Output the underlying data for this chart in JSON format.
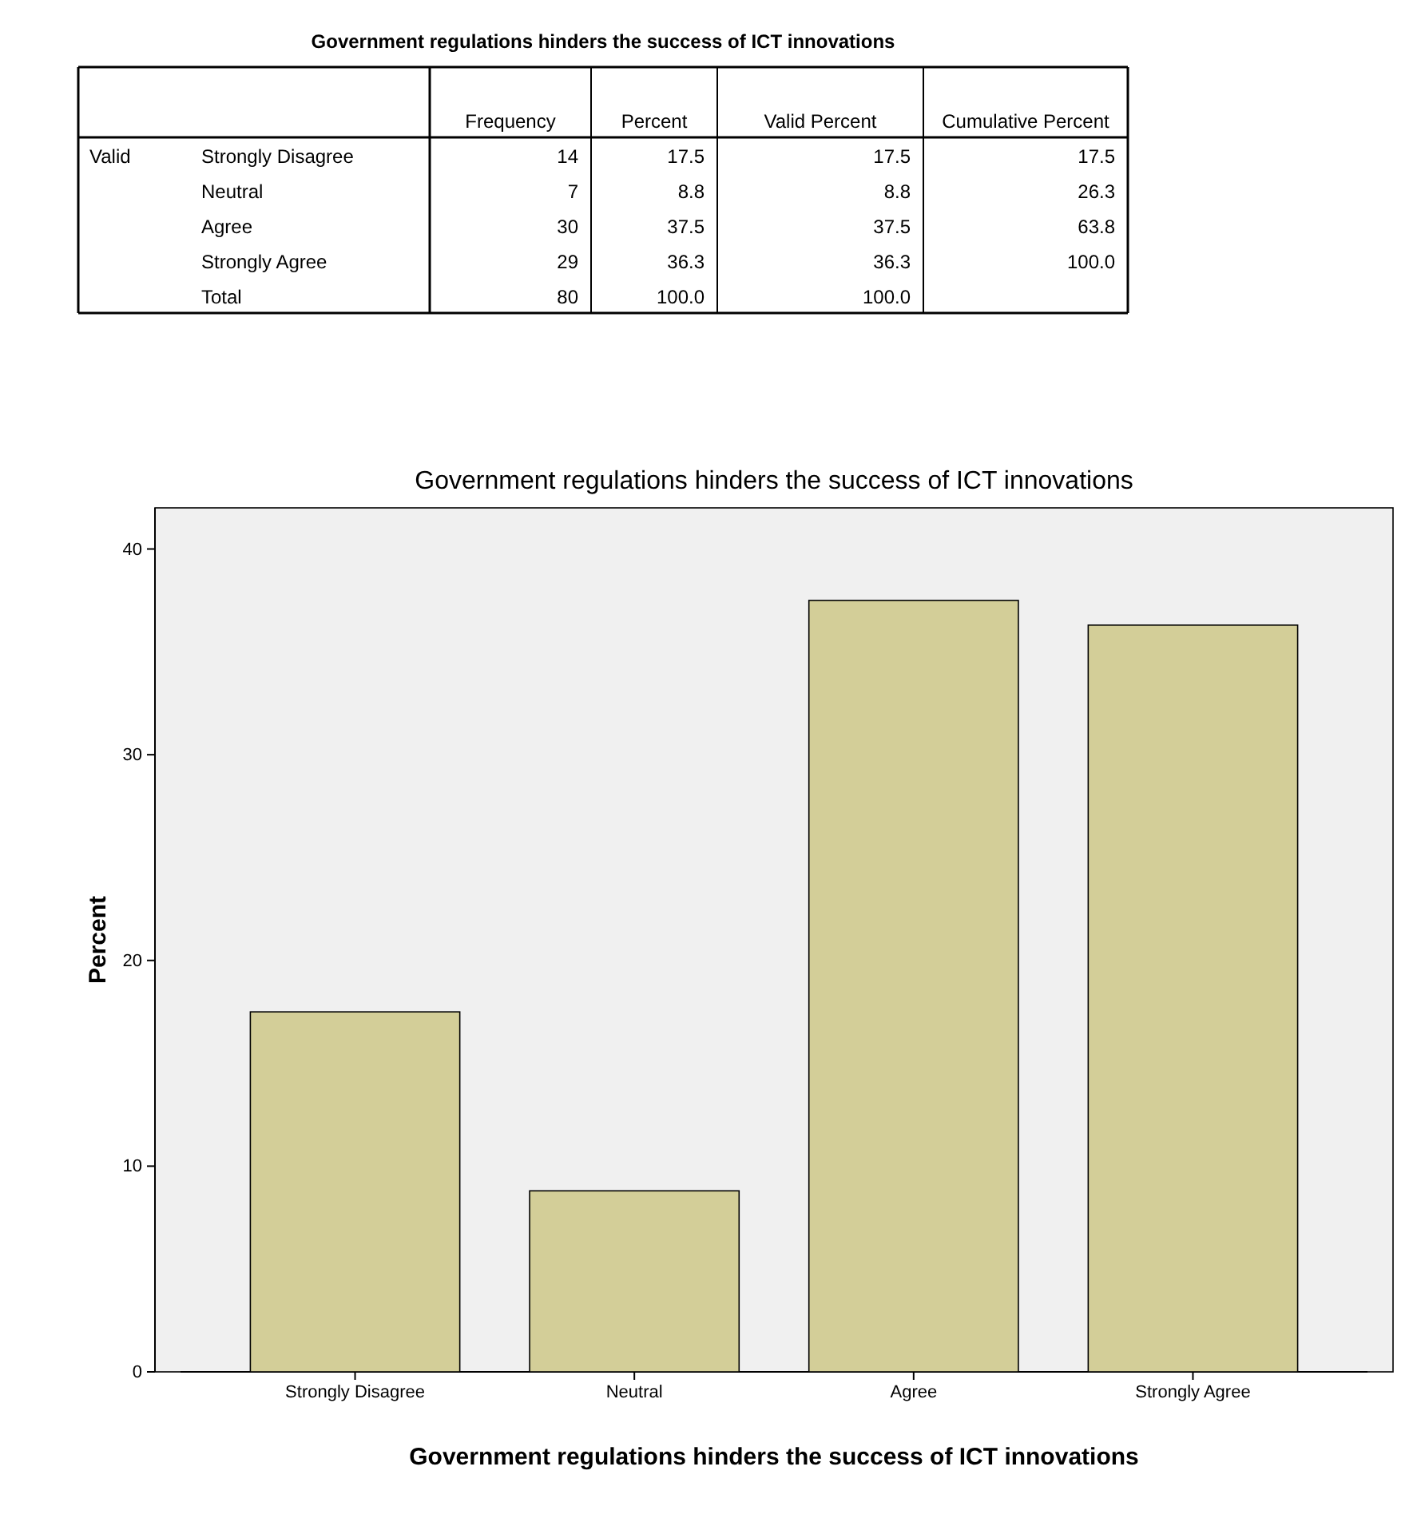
{
  "chart_data": [
    {
      "type": "other",
      "title": "Government regulations hinders the success of ICT innovations",
      "annotations": [
        "Valid"
      ],
      "categories": [
        "Strongly Disagree",
        "Neutral",
        "Agree",
        "Strongly Agree",
        "Total"
      ],
      "series": [
        {
          "name": "Frequency",
          "values": [
            14,
            7,
            30,
            29,
            80
          ],
          "value_labels": [
            "14",
            "7",
            "30",
            "29",
            "80"
          ]
        },
        {
          "name": "Percent",
          "values": [
            17.5,
            8.8,
            37.5,
            36.3,
            100.0
          ],
          "value_labels": [
            "17.5",
            "8.8",
            "37.5",
            "36.3",
            "100.0"
          ]
        },
        {
          "name": "Valid Percent",
          "values": [
            17.5,
            8.8,
            37.5,
            36.3,
            100.0
          ],
          "value_labels": [
            "17.5",
            "8.8",
            "37.5",
            "36.3",
            "100.0"
          ]
        },
        {
          "name": "Cumulative Percent",
          "values": [
            17.5,
            26.3,
            63.8,
            100.0,
            null
          ],
          "value_labels": [
            "17.5",
            "26.3",
            "63.8",
            "100.0",
            null
          ]
        }
      ]
    },
    {
      "type": "bar",
      "title": "Government regulations hinders the success of ICT innovations",
      "xlabel": "Government regulations hinders the success of ICT innovations",
      "ylabel": "Percent",
      "categories": [
        "Strongly Disagree",
        "Neutral",
        "Agree",
        "Strongly Agree"
      ],
      "values": [
        17.5,
        8.8,
        37.5,
        36.3
      ],
      "color": "#d3ce98",
      "ylim": [
        0,
        42
      ],
      "yticks": [
        0,
        10,
        20,
        30,
        40
      ]
    }
  ]
}
